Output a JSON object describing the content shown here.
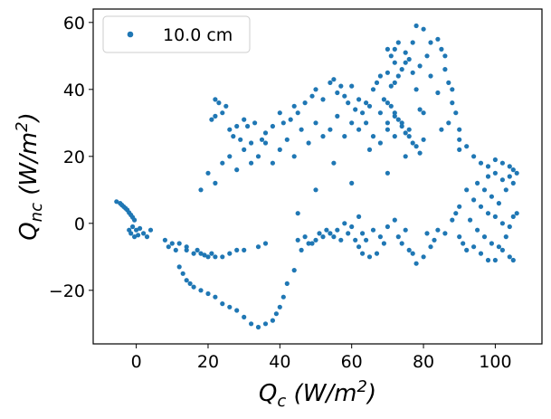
{
  "chart_data": {
    "type": "scatter",
    "title": "",
    "xlabel": {
      "base": "Q",
      "sub": "c",
      "unit_open": " (W/m",
      "sup": "2",
      "unit_close": ")"
    },
    "ylabel": {
      "base": "Q",
      "sub": "nc",
      "unit_open": " (W/m",
      "sup": "2",
      "unit_close": ")"
    },
    "xlim": [
      -12,
      113
    ],
    "ylim": [
      -36,
      64
    ],
    "xticks": [
      0,
      20,
      40,
      60,
      80,
      100
    ],
    "yticks": [
      -20,
      0,
      20,
      40,
      60
    ],
    "xtick_labels": [
      "0",
      "20",
      "40",
      "60",
      "80",
      "100"
    ],
    "ytick_labels": [
      "−20",
      "0",
      "20",
      "40",
      "60"
    ],
    "grid": false,
    "legend_position": "top-left",
    "series": [
      {
        "name": "10.0 cm",
        "color": "#1f77b4",
        "points": [
          [
            -5.5,
            6.5
          ],
          [
            -4.5,
            6.0
          ],
          [
            -4,
            5.5
          ],
          [
            -3.5,
            5.0
          ],
          [
            -3,
            4.5
          ],
          [
            -2.5,
            4.0
          ],
          [
            -2,
            3.2
          ],
          [
            -1.5,
            2.5
          ],
          [
            -1,
            1.8
          ],
          [
            -0.5,
            1.0
          ],
          [
            -2,
            -2
          ],
          [
            -1.5,
            -3
          ],
          [
            -1,
            -1
          ],
          [
            -0.5,
            -4
          ],
          [
            0,
            -2
          ],
          [
            0.5,
            -3.5
          ],
          [
            1,
            -1.5
          ],
          [
            2,
            -3
          ],
          [
            3,
            -4
          ],
          [
            4,
            -2
          ],
          [
            8,
            -5
          ],
          [
            9,
            -7
          ],
          [
            10,
            -6
          ],
          [
            11,
            -8
          ],
          [
            12,
            -6
          ],
          [
            14,
            -8
          ],
          [
            16,
            -9
          ],
          [
            18,
            -9
          ],
          [
            20,
            -10
          ],
          [
            22,
            -10
          ],
          [
            14,
            -7
          ],
          [
            17,
            -8
          ],
          [
            19,
            -9.5
          ],
          [
            21,
            -9
          ],
          [
            24,
            -10
          ],
          [
            26,
            -9
          ],
          [
            28,
            -8
          ],
          [
            30,
            -8
          ],
          [
            34,
            -7
          ],
          [
            36,
            -6
          ],
          [
            12,
            -13
          ],
          [
            13,
            -15
          ],
          [
            14,
            -17
          ],
          [
            15,
            -18
          ],
          [
            16,
            -19
          ],
          [
            18,
            -20
          ],
          [
            20,
            -21
          ],
          [
            22,
            -22
          ],
          [
            24,
            -24
          ],
          [
            26,
            -25
          ],
          [
            28,
            -26
          ],
          [
            30,
            -28
          ],
          [
            32,
            -30
          ],
          [
            34,
            -31
          ],
          [
            36,
            -30
          ],
          [
            38,
            -29
          ],
          [
            39,
            -27
          ],
          [
            40,
            -25
          ],
          [
            41,
            -22
          ],
          [
            42,
            -18
          ],
          [
            44,
            -14
          ],
          [
            46,
            -8
          ],
          [
            48,
            -6
          ],
          [
            50,
            -5
          ],
          [
            52,
            -4
          ],
          [
            54,
            -3
          ],
          [
            56,
            -2
          ],
          [
            58,
            0
          ],
          [
            60,
            -1
          ],
          [
            62,
            2
          ],
          [
            22,
            37
          ],
          [
            23,
            36
          ],
          [
            24,
            33
          ],
          [
            22,
            32
          ],
          [
            21,
            31
          ],
          [
            25,
            35
          ],
          [
            28,
            29
          ],
          [
            30,
            31
          ],
          [
            31,
            29
          ],
          [
            33,
            30
          ],
          [
            26,
            28
          ],
          [
            27,
            26
          ],
          [
            29,
            25
          ],
          [
            32,
            24
          ],
          [
            35,
            25
          ],
          [
            36,
            27
          ],
          [
            38,
            29
          ],
          [
            40,
            33
          ],
          [
            41,
            30
          ],
          [
            43,
            31
          ],
          [
            44,
            35
          ],
          [
            45,
            33
          ],
          [
            47,
            36
          ],
          [
            49,
            38
          ],
          [
            50,
            40
          ],
          [
            52,
            37
          ],
          [
            54,
            42
          ],
          [
            56,
            39
          ],
          [
            58,
            38
          ],
          [
            60,
            41
          ],
          [
            62,
            37
          ],
          [
            64,
            36
          ],
          [
            66,
            40
          ],
          [
            67,
            42
          ],
          [
            68,
            44
          ],
          [
            70,
            45
          ],
          [
            71,
            41
          ],
          [
            72,
            42
          ],
          [
            73,
            44
          ],
          [
            74,
            46
          ],
          [
            55,
            43
          ],
          [
            57,
            41
          ],
          [
            59,
            36
          ],
          [
            61,
            34
          ],
          [
            63,
            33
          ],
          [
            65,
            35
          ],
          [
            68,
            33
          ],
          [
            69,
            37
          ],
          [
            70,
            30
          ],
          [
            72,
            32
          ],
          [
            75,
            48
          ],
          [
            76,
            49
          ],
          [
            77,
            45
          ],
          [
            78,
            40
          ],
          [
            79,
            34
          ],
          [
            80,
            33
          ],
          [
            81,
            50
          ],
          [
            82,
            54
          ],
          [
            78,
            59
          ],
          [
            80,
            58
          ],
          [
            84,
            55
          ],
          [
            85,
            52
          ],
          [
            86,
            50
          ],
          [
            86,
            46
          ],
          [
            87,
            42
          ],
          [
            88,
            40
          ],
          [
            88,
            36
          ],
          [
            89,
            33
          ],
          [
            87,
            30
          ],
          [
            90,
            28
          ],
          [
            73,
            54
          ],
          [
            72,
            52
          ],
          [
            71,
            50
          ],
          [
            70,
            52
          ],
          [
            72,
            48
          ],
          [
            75,
            51
          ],
          [
            77,
            54
          ],
          [
            79,
            47
          ],
          [
            82,
            44
          ],
          [
            84,
            39
          ],
          [
            90,
            25
          ],
          [
            92,
            23
          ],
          [
            94,
            20
          ],
          [
            96,
            18
          ],
          [
            98,
            17
          ],
          [
            100,
            19
          ],
          [
            102,
            18
          ],
          [
            104,
            17
          ],
          [
            105,
            16
          ],
          [
            106,
            15
          ],
          [
            92,
            10
          ],
          [
            94,
            7
          ],
          [
            96,
            5
          ],
          [
            98,
            3
          ],
          [
            100,
            2
          ],
          [
            102,
            0
          ],
          [
            104,
            -1
          ],
          [
            105,
            2
          ],
          [
            106,
            3
          ],
          [
            103,
            -4
          ],
          [
            90,
            -4
          ],
          [
            91,
            -6
          ],
          [
            92,
            -8
          ],
          [
            94,
            -7
          ],
          [
            96,
            -9
          ],
          [
            98,
            -11
          ],
          [
            100,
            -11
          ],
          [
            102,
            -8
          ],
          [
            104,
            -10
          ],
          [
            105,
            -11
          ],
          [
            84,
            -2
          ],
          [
            86,
            -3
          ],
          [
            88,
            1
          ],
          [
            89,
            3
          ],
          [
            90,
            5
          ],
          [
            93,
            1
          ],
          [
            95,
            -2
          ],
          [
            97,
            -4
          ],
          [
            99,
            -6
          ],
          [
            101,
            -7
          ],
          [
            76,
            -8
          ],
          [
            74,
            -6
          ],
          [
            73,
            -4
          ],
          [
            75,
            -2
          ],
          [
            77,
            -9
          ],
          [
            78,
            -12
          ],
          [
            80,
            -10
          ],
          [
            82,
            -7
          ],
          [
            83,
            -5
          ],
          [
            81,
            -3
          ],
          [
            62,
            -7
          ],
          [
            64,
            -5
          ],
          [
            66,
            -2
          ],
          [
            68,
            -4
          ],
          [
            70,
            -1
          ],
          [
            72,
            1
          ],
          [
            69,
            -6
          ],
          [
            67,
            -9
          ],
          [
            65,
            -10
          ],
          [
            63,
            -9
          ],
          [
            45,
            -5
          ],
          [
            47,
            -4
          ],
          [
            49,
            -6
          ],
          [
            51,
            -3
          ],
          [
            53,
            -2
          ],
          [
            55,
            -4
          ],
          [
            57,
            -5
          ],
          [
            59,
            -3
          ],
          [
            61,
            -5
          ],
          [
            63,
            -3
          ],
          [
            45,
            3
          ],
          [
            50,
            10
          ],
          [
            55,
            18
          ],
          [
            60,
            12
          ],
          [
            65,
            22
          ],
          [
            70,
            15
          ],
          [
            75,
            20
          ],
          [
            80,
            25
          ],
          [
            85,
            28
          ],
          [
            90,
            22
          ],
          [
            38,
            18
          ],
          [
            40,
            22
          ],
          [
            42,
            25
          ],
          [
            44,
            20
          ],
          [
            46,
            28
          ],
          [
            48,
            24
          ],
          [
            50,
            30
          ],
          [
            52,
            26
          ],
          [
            54,
            28
          ],
          [
            56,
            32
          ],
          [
            58,
            26
          ],
          [
            60,
            30
          ],
          [
            62,
            28
          ],
          [
            64,
            30
          ],
          [
            66,
            26
          ],
          [
            68,
            24
          ],
          [
            70,
            28
          ],
          [
            72,
            26
          ],
          [
            74,
            30
          ],
          [
            76,
            28
          ],
          [
            20,
            15
          ],
          [
            22,
            12
          ],
          [
            24,
            18
          ],
          [
            26,
            20
          ],
          [
            28,
            16
          ],
          [
            30,
            22
          ],
          [
            32,
            18
          ],
          [
            34,
            20
          ],
          [
            36,
            24
          ],
          [
            18,
            10
          ],
          [
            95,
            12
          ],
          [
            97,
            10
          ],
          [
            99,
            8
          ],
          [
            101,
            6
          ],
          [
            103,
            10
          ],
          [
            105,
            12
          ],
          [
            104,
            14
          ],
          [
            102,
            13
          ],
          [
            100,
            15
          ],
          [
            98,
            14
          ],
          [
            70,
            36
          ],
          [
            71,
            35
          ],
          [
            72,
            33
          ],
          [
            73,
            31
          ],
          [
            74,
            29
          ],
          [
            75,
            27
          ],
          [
            76,
            26
          ],
          [
            77,
            24
          ],
          [
            78,
            23
          ],
          [
            79,
            21
          ]
        ]
      }
    ]
  }
}
